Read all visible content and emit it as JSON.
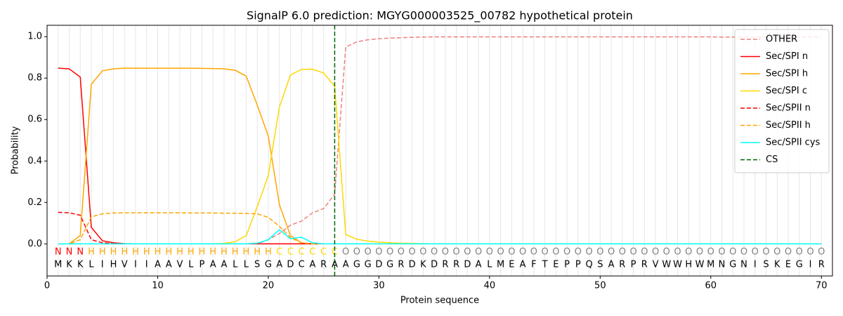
{
  "chart_data": {
    "type": "line",
    "title": "SignalP 6.0 prediction: MGYG000003525_00782 hypothetical protein",
    "x_label": "Protein sequence",
    "y_label": "Probability",
    "x": [
      1,
      2,
      3,
      4,
      5,
      6,
      7,
      8,
      9,
      10,
      11,
      12,
      13,
      14,
      15,
      16,
      17,
      18,
      19,
      20,
      21,
      22,
      23,
      24,
      25,
      26,
      27,
      28,
      29,
      30,
      31,
      32,
      33,
      34,
      35,
      36,
      37,
      38,
      39,
      40,
      41,
      42,
      43,
      44,
      45,
      46,
      47,
      48,
      49,
      50,
      51,
      52,
      53,
      54,
      55,
      56,
      57,
      58,
      59,
      60,
      61,
      62,
      63,
      64,
      65,
      66,
      67,
      68,
      69,
      70
    ],
    "sequence": [
      "M",
      "K",
      "K",
      "L",
      "I",
      "H",
      "V",
      "I",
      "I",
      "A",
      "A",
      "V",
      "L",
      "P",
      "A",
      "A",
      "L",
      "L",
      "S",
      "G",
      "A",
      "D",
      "C",
      "A",
      "R",
      "A",
      "A",
      "G",
      "G",
      "D",
      "G",
      "R",
      "D",
      "K",
      "D",
      "R",
      "R",
      "D",
      "A",
      "L",
      "M",
      "E",
      "A",
      "F",
      "T",
      "E",
      "P",
      "P",
      "Q",
      "S",
      "A",
      "R",
      "P",
      "R",
      "V",
      "W",
      "W",
      "H",
      "W",
      "M",
      "N",
      "G",
      "N",
      "I",
      "S",
      "K",
      "E",
      "G",
      "I",
      "R"
    ],
    "regions": [
      "N",
      "N",
      "N",
      "H",
      "H",
      "H",
      "H",
      "H",
      "H",
      "H",
      "H",
      "H",
      "H",
      "H",
      "H",
      "H",
      "H",
      "H",
      "H",
      "H",
      "C",
      "C",
      "C",
      "C",
      "C",
      "C",
      "O",
      "O",
      "O",
      "O",
      "O",
      "O",
      "O",
      "O",
      "O",
      "O",
      "O",
      "O",
      "O",
      "O",
      "O",
      "O",
      "O",
      "O",
      "O",
      "O",
      "O",
      "O",
      "O",
      "O",
      "O",
      "O",
      "O",
      "O",
      "O",
      "O",
      "O",
      "O",
      "O",
      "O",
      "O",
      "O",
      "O",
      "O",
      "O",
      "O",
      "O",
      "O",
      "O",
      "O"
    ],
    "region_colors": {
      "N": "#ff0000",
      "H": "#ffa500",
      "C": "#ffd700",
      "O": "#808080"
    },
    "series": [
      {
        "name": "OTHER",
        "color": "#f08080",
        "style": "dashed",
        "values": [
          0,
          0,
          0,
          0,
          0,
          0,
          0,
          0,
          0,
          0,
          0,
          0,
          0,
          0,
          0,
          0,
          0,
          0,
          0,
          0.02,
          0.05,
          0.09,
          0.11,
          0.15,
          0.17,
          0.24,
          0.95,
          0.975,
          0.985,
          0.99,
          0.993,
          0.995,
          0.997,
          0.998,
          0.999,
          0.999,
          0.999,
          0.999,
          0.999,
          0.999,
          0.999,
          0.999,
          0.999,
          0.999,
          0.999,
          0.999,
          0.999,
          0.999,
          0.999,
          0.999,
          0.999,
          0.999,
          0.999,
          0.999,
          0.999,
          0.999,
          0.999,
          0.999,
          0.999,
          0.999,
          0.998,
          0.998,
          0.998,
          0.998,
          0.998,
          0.998,
          0.998,
          0.998,
          0.998,
          0.998
        ]
      },
      {
        "name": "Sec/SPI n",
        "color": "#ff0000",
        "style": "solid",
        "values": [
          0.848,
          0.845,
          0.805,
          0.08,
          0.015,
          0.005,
          0.001,
          0,
          0,
          0,
          0,
          0,
          0,
          0,
          0,
          0,
          0,
          0,
          0,
          0,
          0,
          0,
          0,
          0,
          0,
          0,
          0,
          0,
          0,
          0,
          0,
          0,
          0,
          0,
          0,
          0,
          0,
          0,
          0,
          0,
          0,
          0,
          0,
          0,
          0,
          0,
          0,
          0,
          0,
          0,
          0,
          0,
          0,
          0,
          0,
          0,
          0,
          0,
          0,
          0,
          0,
          0,
          0,
          0,
          0,
          0,
          0,
          0,
          0,
          0
        ]
      },
      {
        "name": "Sec/SPI h",
        "color": "#ffa500",
        "style": "solid",
        "values": [
          0,
          0,
          0.04,
          0.77,
          0.835,
          0.845,
          0.848,
          0.848,
          0.848,
          0.848,
          0.848,
          0.848,
          0.848,
          0.847,
          0.846,
          0.845,
          0.838,
          0.81,
          0.67,
          0.52,
          0.19,
          0.04,
          0.005,
          0,
          0,
          0,
          0,
          0,
          0,
          0,
          0,
          0,
          0,
          0,
          0,
          0,
          0,
          0,
          0,
          0,
          0,
          0,
          0,
          0,
          0,
          0,
          0,
          0,
          0,
          0,
          0,
          0,
          0,
          0,
          0,
          0,
          0,
          0,
          0,
          0,
          0,
          0,
          0,
          0,
          0,
          0,
          0,
          0,
          0,
          0
        ]
      },
      {
        "name": "Sec/SPI c",
        "color": "#ffd700",
        "style": "solid",
        "values": [
          0,
          0,
          0,
          0,
          0,
          0,
          0,
          0,
          0,
          0,
          0,
          0,
          0,
          0,
          0,
          0.002,
          0.01,
          0.04,
          0.18,
          0.33,
          0.66,
          0.815,
          0.842,
          0.843,
          0.825,
          0.76,
          0.045,
          0.022,
          0.013,
          0.008,
          0.005,
          0.003,
          0.002,
          0.001,
          0,
          0,
          0,
          0,
          0,
          0,
          0,
          0,
          0,
          0,
          0,
          0,
          0,
          0,
          0,
          0,
          0,
          0,
          0,
          0,
          0,
          0,
          0,
          0,
          0,
          0,
          0,
          0,
          0,
          0,
          0,
          0,
          0,
          0,
          0,
          0
        ]
      },
      {
        "name": "Sec/SPII n",
        "color": "#ff0000",
        "style": "dashed",
        "values": [
          0.152,
          0.15,
          0.138,
          0.02,
          0.005,
          0.002,
          0,
          0,
          0,
          0,
          0,
          0,
          0,
          0,
          0,
          0,
          0,
          0,
          0,
          0,
          0,
          0,
          0,
          0,
          0,
          0,
          0,
          0,
          0,
          0,
          0,
          0,
          0,
          0,
          0,
          0,
          0,
          0,
          0,
          0,
          0,
          0,
          0,
          0,
          0,
          0,
          0,
          0,
          0,
          0,
          0,
          0,
          0,
          0,
          0,
          0,
          0,
          0,
          0,
          0,
          0,
          0,
          0,
          0,
          0,
          0,
          0,
          0,
          0,
          0
        ]
      },
      {
        "name": "Sec/SPII h",
        "color": "#ffa500",
        "style": "dashed",
        "values": [
          0,
          0,
          0.02,
          0.13,
          0.145,
          0.149,
          0.15,
          0.15,
          0.15,
          0.15,
          0.15,
          0.15,
          0.149,
          0.149,
          0.149,
          0.148,
          0.148,
          0.147,
          0.145,
          0.128,
          0.085,
          0.03,
          0.005,
          0,
          0,
          0,
          0,
          0,
          0,
          0,
          0,
          0,
          0,
          0,
          0,
          0,
          0,
          0,
          0,
          0,
          0,
          0,
          0,
          0,
          0,
          0,
          0,
          0,
          0,
          0,
          0,
          0,
          0,
          0,
          0,
          0,
          0,
          0,
          0,
          0,
          0,
          0,
          0,
          0,
          0,
          0,
          0,
          0,
          0,
          0
        ]
      },
      {
        "name": "Sec/SPII cys",
        "color": "#00ffff",
        "style": "solid",
        "values": [
          0,
          0,
          0,
          0,
          0,
          0,
          0,
          0,
          0,
          0,
          0,
          0,
          0,
          0,
          0,
          0,
          0,
          0,
          0.003,
          0.02,
          0.068,
          0.025,
          0.032,
          0.005,
          0,
          0,
          0,
          0,
          0,
          0,
          0,
          0,
          0,
          0,
          0,
          0,
          0,
          0,
          0,
          0,
          0,
          0,
          0,
          0,
          0,
          0,
          0,
          0,
          0,
          0,
          0,
          0,
          0,
          0,
          0,
          0,
          0,
          0,
          0,
          0,
          0,
          0,
          0,
          0,
          0,
          0,
          0,
          0,
          0,
          0
        ]
      }
    ],
    "cleavage_site": {
      "name": "CS",
      "color": "#006400",
      "style": "dashed",
      "x": 26
    },
    "xlim": [
      0,
      71
    ],
    "ylim": [
      -0.155,
      1.055
    ],
    "xticks": [
      0,
      10,
      20,
      30,
      40,
      50,
      60,
      70
    ],
    "yticks": [
      {
        "value": 0,
        "label": "0.0"
      },
      {
        "value": 0.2,
        "label": "0.2"
      },
      {
        "value": 0.4,
        "label": "0.4"
      },
      {
        "value": 0.6,
        "label": "0.6"
      },
      {
        "value": 0.8,
        "label": "0.8"
      },
      {
        "value": 1,
        "label": "1.0"
      }
    ],
    "grid": true,
    "legend": "upper right"
  }
}
